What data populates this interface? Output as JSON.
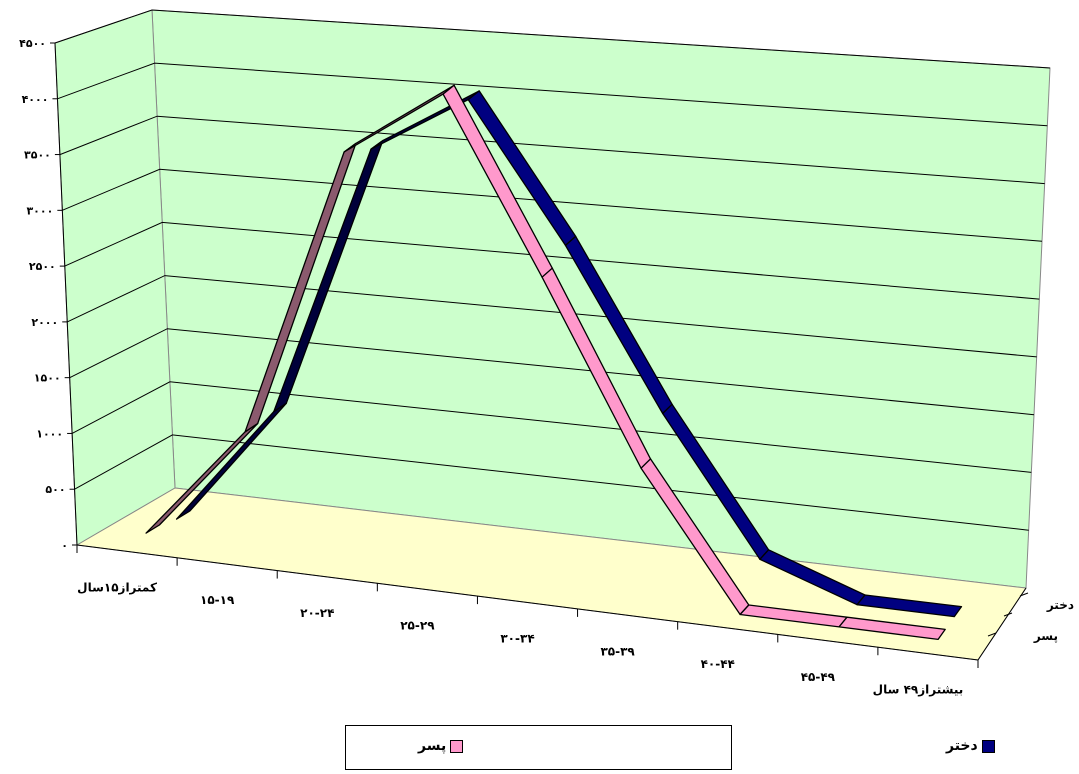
{
  "chart_data": {
    "type": "line",
    "style": "3d-ribbon",
    "categories": [
      "کمتراز۱۵سال",
      "۱۵-۱۹",
      "۲۰-۲۴",
      "۲۵-۲۹",
      "۳۰-۳۴",
      "۳۵-۳۹",
      "۴۰-۴۴",
      "۴۵-۴۹",
      "بیشتراز۴۹ سال"
    ],
    "y_tick_labels": [
      "۰",
      "۵۰۰",
      "۱۰۰۰",
      "۱۵۰۰",
      "۲۰۰۰",
      "۲۵۰۰",
      "۳۰۰۰",
      "۳۵۰۰",
      "۴۰۰۰",
      "۴۵۰۰"
    ],
    "ylim": [
      0,
      4500
    ],
    "grid": true,
    "legend_position": "bottom",
    "series": [
      {
        "name": "دختر",
        "color": "#000080",
        "values": [
          20,
          1090,
          3550,
          4100,
          2900,
          1500,
          300,
          0,
          0
        ]
      },
      {
        "name": "پسر",
        "color": "#ff99cc",
        "values": [
          60,
          1080,
          3700,
          4330,
          2800,
          1200,
          0,
          0,
          0
        ]
      }
    ],
    "title": "",
    "xlabel": "",
    "ylabel": ""
  },
  "legend": {
    "dokhtar_label": "دختر",
    "pesar_label": "پسر"
  },
  "colors": {
    "wall": "#ccffcc",
    "floor": "#ffffcc",
    "pesar_side": "#8b5a6e"
  }
}
